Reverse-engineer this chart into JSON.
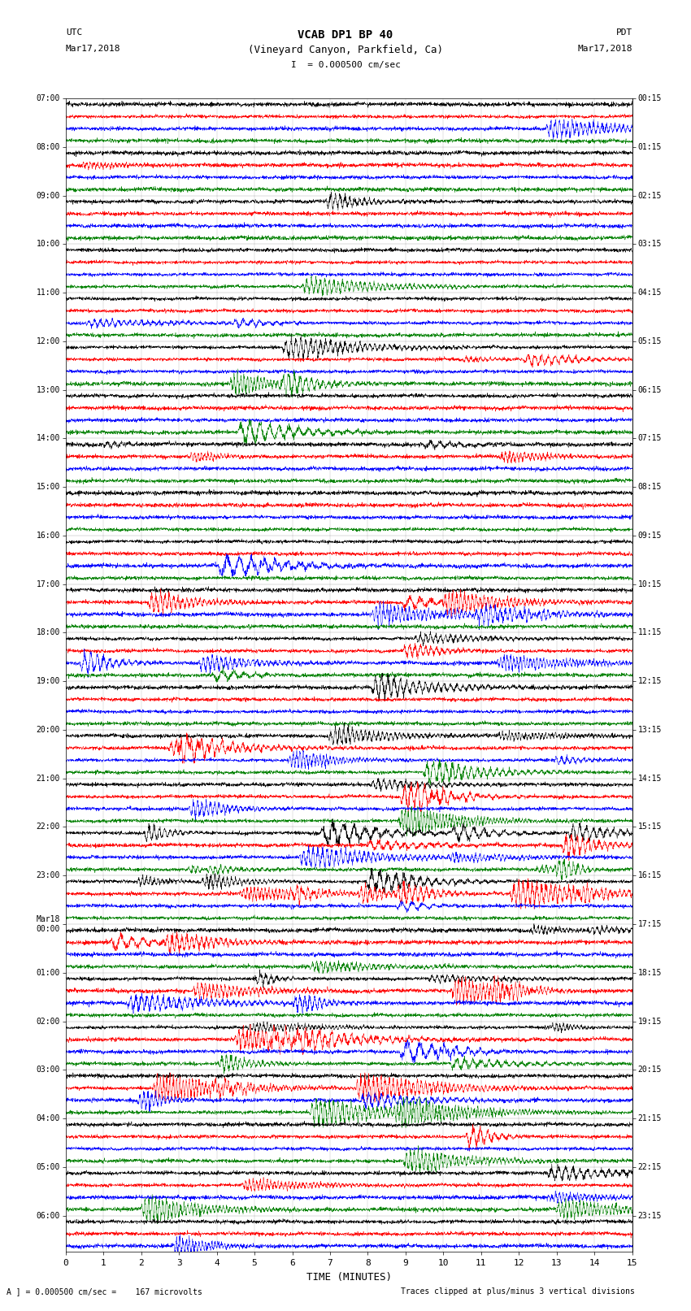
{
  "title_line1": "VCAB DP1 BP 40",
  "title_line2": "(Vineyard Canyon, Parkfield, Ca)",
  "scale_label": "I  = 0.000500 cm/sec",
  "utc_label": "UTC",
  "utc_date": "Mar17,2018",
  "pdt_label": "PDT",
  "pdt_date": "Mar17,2018",
  "left_times": [
    "07:00",
    "",
    "",
    "",
    "08:00",
    "",
    "",
    "",
    "09:00",
    "",
    "",
    "",
    "10:00",
    "",
    "",
    "",
    "11:00",
    "",
    "",
    "",
    "12:00",
    "",
    "",
    "",
    "13:00",
    "",
    "",
    "",
    "14:00",
    "",
    "",
    "",
    "15:00",
    "",
    "",
    "",
    "16:00",
    "",
    "",
    "",
    "17:00",
    "",
    "",
    "",
    "18:00",
    "",
    "",
    "",
    "19:00",
    "",
    "",
    "",
    "20:00",
    "",
    "",
    "",
    "21:00",
    "",
    "",
    "",
    "22:00",
    "",
    "",
    "",
    "23:00",
    "",
    "",
    "",
    "Mar18\n00:00",
    "",
    "",
    "",
    "01:00",
    "",
    "",
    "",
    "02:00",
    "",
    "",
    "",
    "03:00",
    "",
    "",
    "",
    "04:00",
    "",
    "",
    "",
    "05:00",
    "",
    "",
    "",
    "06:00",
    "",
    ""
  ],
  "right_times": [
    "00:15",
    "",
    "",
    "",
    "01:15",
    "",
    "",
    "",
    "02:15",
    "",
    "",
    "",
    "03:15",
    "",
    "",
    "",
    "04:15",
    "",
    "",
    "",
    "05:15",
    "",
    "",
    "",
    "06:15",
    "",
    "",
    "",
    "07:15",
    "",
    "",
    "",
    "08:15",
    "",
    "",
    "",
    "09:15",
    "",
    "",
    "",
    "10:15",
    "",
    "",
    "",
    "11:15",
    "",
    "",
    "",
    "12:15",
    "",
    "",
    "",
    "13:15",
    "",
    "",
    "",
    "14:15",
    "",
    "",
    "",
    "15:15",
    "",
    "",
    "",
    "16:15",
    "",
    "",
    "",
    "17:15",
    "",
    "",
    "",
    "18:15",
    "",
    "",
    "",
    "19:15",
    "",
    "",
    "",
    "20:15",
    "",
    "",
    "",
    "21:15",
    "",
    "",
    "",
    "22:15",
    "",
    "",
    "",
    "23:15",
    "",
    ""
  ],
  "trace_color_cycle": [
    "black",
    "red",
    "blue",
    "green"
  ],
  "n_rows": 95,
  "xlabel": "TIME (MINUTES)",
  "footer_left": "A ] = 0.000500 cm/sec =    167 microvolts",
  "footer_right": "Traces clipped at plus/minus 3 vertical divisions",
  "bg_color": "white",
  "xmin": 0,
  "xmax": 15,
  "xticks": [
    0,
    1,
    2,
    3,
    4,
    5,
    6,
    7,
    8,
    9,
    10,
    11,
    12,
    13,
    14,
    15
  ],
  "noise_base": 0.15,
  "event_scale": 2.8,
  "trace_amplitude_scale": 0.42
}
